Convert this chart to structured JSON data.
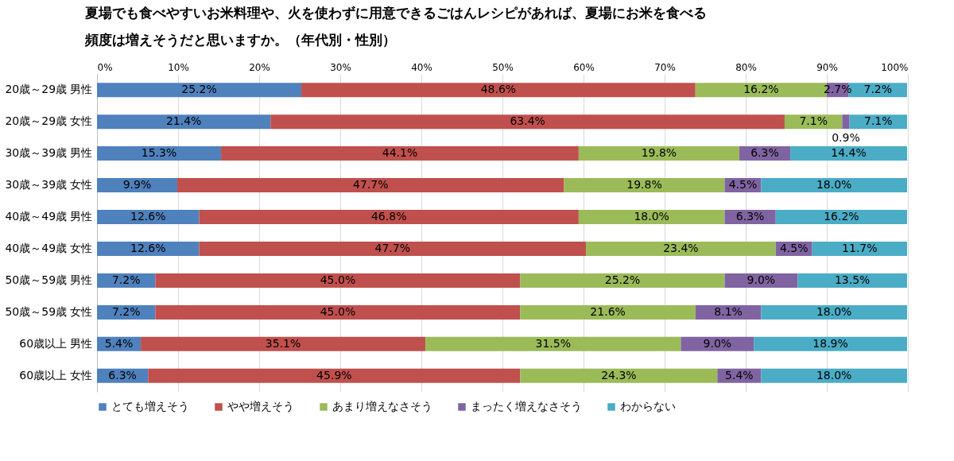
{
  "chart_data": {
    "type": "bar",
    "orientation": "horizontal",
    "stacked": true,
    "title": "夏場でも食べやすいお米料理や、火を使わずに用意できるごはんレシピがあれば、夏場にお米を食べる頻度は増えそうだと思いますか。（年代別・性別）",
    "categories": [
      "20歳～29歳 男性",
      "20歳～29歳 女性",
      "30歳～39歳 男性",
      "30歳～39歳 女性",
      "40歳～49歳 男性",
      "40歳～49歳 女性",
      "50歳～59歳 男性",
      "50歳～59歳 女性",
      "60歳以上 男性",
      "60歳以上 女性"
    ],
    "series": [
      {
        "name": "とても増えそう",
        "color": "#4f81bd",
        "values": [
          25.2,
          21.4,
          15.3,
          9.9,
          12.6,
          12.6,
          7.2,
          7.2,
          5.4,
          6.3
        ],
        "value_labels": [
          "25.2%",
          "21.4%",
          "15.3%",
          "9.9%",
          "12.6%",
          "12.6%",
          "7.2%",
          "7.2%",
          "5.4%",
          "6.3%"
        ]
      },
      {
        "name": "やや増えそう",
        "color": "#c0504d",
        "values": [
          48.6,
          63.4,
          44.1,
          47.7,
          46.8,
          47.7,
          45.0,
          45.0,
          35.1,
          45.9
        ],
        "value_labels": [
          "48.6%",
          "63.4%",
          "44.1%",
          "47.7%",
          "46.8%",
          "47.7%",
          "45.0%",
          "45.0%",
          "35.1%",
          "45.9%"
        ]
      },
      {
        "name": "あまり増えなさそう",
        "color": "#9bbb59",
        "values": [
          16.2,
          7.1,
          19.8,
          19.8,
          18.0,
          23.4,
          25.2,
          21.6,
          31.5,
          24.3
        ],
        "value_labels": [
          "16.2%",
          "7.1%",
          "19.8%",
          "19.8%",
          "18.0%",
          "23.4%",
          "25.2%",
          "21.6%",
          "31.5%",
          "24.3%"
        ]
      },
      {
        "name": "まったく増えなさそう",
        "color": "#8064a2",
        "values": [
          2.7,
          0.9,
          6.3,
          4.5,
          6.3,
          4.5,
          9.0,
          8.1,
          9.0,
          5.4
        ],
        "value_labels": [
          "2.7%",
          "0.9%",
          "6.3%",
          "4.5%",
          "6.3%",
          "4.5%",
          "9.0%",
          "8.1%",
          "9.0%",
          "5.4%"
        ]
      },
      {
        "name": "わからない",
        "color": "#4bacc6",
        "values": [
          7.2,
          7.1,
          14.4,
          18.0,
          16.2,
          11.7,
          13.5,
          18.0,
          18.9,
          18.0
        ],
        "value_labels": [
          "7.2%",
          "7.1%",
          "14.4%",
          "18.0%",
          "16.2%",
          "11.7%",
          "13.5%",
          "18.0%",
          "18.9%",
          "18.0%"
        ]
      }
    ],
    "xlim": [
      0,
      100
    ],
    "xticks": [
      {
        "value": 0,
        "label": "0%"
      },
      {
        "value": 10,
        "label": "10%"
      },
      {
        "value": 20,
        "label": "20%"
      },
      {
        "value": 30,
        "label": "30%"
      },
      {
        "value": 40,
        "label": "40%"
      },
      {
        "value": 50,
        "label": "50%"
      },
      {
        "value": 60,
        "label": "60%"
      },
      {
        "value": 70,
        "label": "70%"
      },
      {
        "value": 80,
        "label": "80%"
      },
      {
        "value": 90,
        "label": "90%"
      },
      {
        "value": 100,
        "label": "100%"
      }
    ],
    "grid": "x",
    "legend": "bottom"
  }
}
